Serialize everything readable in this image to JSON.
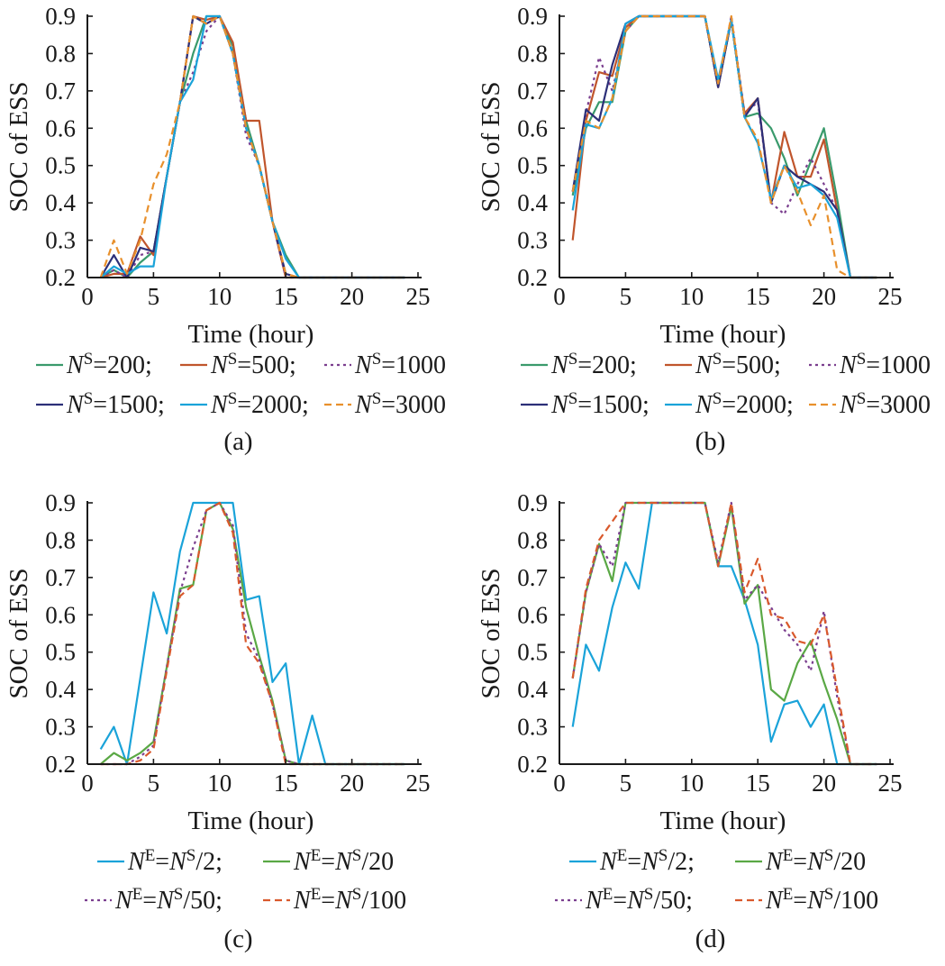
{
  "chart_data": [
    {
      "type": "line",
      "caption": "(a)",
      "xlabel": "Time (hour)",
      "ylabel": "SOC of ESS",
      "xlim": [
        0,
        25
      ],
      "ylim": [
        0.2,
        0.9
      ],
      "xticks": [
        "0",
        "5",
        "10",
        "15",
        "20",
        "25"
      ],
      "yticks": [
        "0.2",
        "0.3",
        "0.4",
        "0.5",
        "0.6",
        "0.7",
        "0.8",
        "0.9"
      ],
      "grid": false,
      "legend_position": "bottom",
      "x": [
        1,
        2,
        3,
        4,
        5,
        6,
        7,
        8,
        9,
        10,
        11,
        12,
        13,
        14,
        15,
        16,
        17,
        18,
        19,
        20,
        21,
        22,
        23,
        24
      ],
      "series": [
        {
          "name": "NS=200",
          "legend_base": "N",
          "legend_sup": "S",
          "legend_rest": "=200",
          "color": "#3a9a6c",
          "dash": "",
          "values": [
            0.2,
            0.22,
            0.2,
            0.24,
            0.27,
            0.47,
            0.67,
            0.8,
            0.9,
            0.9,
            0.82,
            0.62,
            0.5,
            0.35,
            0.26,
            0.2,
            0.2,
            0.2,
            0.2,
            0.2,
            0.2,
            0.2,
            0.2,
            0.2
          ]
        },
        {
          "name": "NS=500",
          "legend_base": "N",
          "legend_sup": "S",
          "legend_rest": "=500",
          "color": "#c0552c",
          "dash": "",
          "values": [
            0.2,
            0.21,
            0.21,
            0.31,
            0.26,
            0.47,
            0.67,
            0.9,
            0.89,
            0.9,
            0.83,
            0.62,
            0.62,
            0.35,
            0.2,
            0.2,
            0.2,
            0.2,
            0.2,
            0.2,
            0.2,
            0.2,
            0.2,
            0.2
          ]
        },
        {
          "name": "NS=1000",
          "legend_base": "N",
          "legend_sup": "S",
          "legend_rest": "=1000",
          "color": "#7b3f8f",
          "dash": "3,4",
          "values": [
            0.2,
            0.22,
            0.2,
            0.26,
            0.27,
            0.47,
            0.67,
            0.75,
            0.86,
            0.9,
            0.8,
            0.58,
            0.5,
            0.35,
            0.2,
            0.2,
            0.2,
            0.2,
            0.2,
            0.2,
            0.2,
            0.2,
            0.2,
            0.2
          ]
        },
        {
          "name": "NS=1500",
          "legend_base": "N",
          "legend_sup": "S",
          "legend_rest": "=1500",
          "color": "#2c2f78",
          "dash": "",
          "values": [
            0.2,
            0.26,
            0.2,
            0.28,
            0.27,
            0.47,
            0.67,
            0.9,
            0.88,
            0.9,
            0.8,
            0.6,
            0.5,
            0.35,
            0.21,
            0.2,
            0.2,
            0.2,
            0.2,
            0.2,
            0.2,
            0.2,
            0.2,
            0.2
          ]
        },
        {
          "name": "NS=2000",
          "legend_base": "N",
          "legend_sup": "S",
          "legend_rest": "=2000",
          "color": "#1aa3d9",
          "dash": "",
          "values": [
            0.2,
            0.23,
            0.21,
            0.23,
            0.23,
            0.47,
            0.67,
            0.73,
            0.9,
            0.9,
            0.8,
            0.6,
            0.5,
            0.35,
            0.25,
            0.2,
            0.2,
            0.2,
            0.2,
            0.2,
            0.2,
            0.2,
            0.2,
            0.2
          ]
        },
        {
          "name": "NS=3000",
          "legend_base": "N",
          "legend_sup": "S",
          "legend_rest": "=3000",
          "color": "#e8902c",
          "dash": "8,5",
          "values": [
            0.2,
            0.3,
            0.21,
            0.3,
            0.45,
            0.53,
            0.67,
            0.9,
            0.88,
            0.9,
            0.8,
            0.6,
            0.5,
            0.35,
            0.21,
            0.2,
            0.2,
            0.2,
            0.2,
            0.2,
            0.2,
            0.2,
            0.2,
            0.2
          ]
        }
      ]
    },
    {
      "type": "line",
      "caption": "(b)",
      "xlabel": "Time (hour)",
      "ylabel": "SOC of ESS",
      "xlim": [
        0,
        25
      ],
      "ylim": [
        0.2,
        0.9
      ],
      "xticks": [
        "0",
        "5",
        "10",
        "15",
        "20",
        "25"
      ],
      "yticks": [
        "0.2",
        "0.3",
        "0.4",
        "0.5",
        "0.6",
        "0.7",
        "0.8",
        "0.9"
      ],
      "grid": false,
      "legend_position": "bottom",
      "x": [
        1,
        2,
        3,
        4,
        5,
        6,
        7,
        8,
        9,
        10,
        11,
        12,
        13,
        14,
        15,
        16,
        17,
        18,
        19,
        20,
        21,
        22,
        23,
        24
      ],
      "series": [
        {
          "name": "NS=200",
          "legend_base": "N",
          "legend_sup": "S",
          "legend_rest": "=200",
          "color": "#3a9a6c",
          "dash": "",
          "values": [
            0.42,
            0.6,
            0.67,
            0.67,
            0.86,
            0.9,
            0.9,
            0.9,
            0.9,
            0.9,
            0.9,
            0.71,
            0.89,
            0.63,
            0.64,
            0.6,
            0.52,
            0.42,
            0.51,
            0.6,
            0.41,
            0.2,
            0.2,
            0.2
          ]
        },
        {
          "name": "NS=500",
          "legend_base": "N",
          "legend_sup": "S",
          "legend_rest": "=500",
          "color": "#c0552c",
          "dash": "",
          "values": [
            0.3,
            0.62,
            0.75,
            0.74,
            0.87,
            0.9,
            0.9,
            0.9,
            0.9,
            0.9,
            0.9,
            0.71,
            0.89,
            0.64,
            0.68,
            0.4,
            0.59,
            0.47,
            0.47,
            0.57,
            0.38,
            0.2,
            0.2,
            0.2
          ]
        },
        {
          "name": "NS=1000",
          "legend_base": "N",
          "legend_sup": "S",
          "legend_rest": "=1000",
          "color": "#7b3f8f",
          "dash": "3,4",
          "values": [
            0.43,
            0.64,
            0.79,
            0.7,
            0.86,
            0.9,
            0.9,
            0.9,
            0.9,
            0.9,
            0.9,
            0.71,
            0.9,
            0.64,
            0.67,
            0.4,
            0.37,
            0.45,
            0.52,
            0.45,
            0.38,
            0.2,
            0.2,
            0.2
          ]
        },
        {
          "name": "NS=1500",
          "legend_base": "N",
          "legend_sup": "S",
          "legend_rest": "=1500",
          "color": "#2c2f78",
          "dash": "",
          "values": [
            0.43,
            0.65,
            0.62,
            0.77,
            0.88,
            0.9,
            0.9,
            0.9,
            0.9,
            0.9,
            0.9,
            0.71,
            0.89,
            0.63,
            0.68,
            0.4,
            0.5,
            0.47,
            0.45,
            0.43,
            0.38,
            0.2,
            0.2,
            0.2
          ]
        },
        {
          "name": "NS=2000",
          "legend_base": "N",
          "legend_sup": "S",
          "legend_rest": "=2000",
          "color": "#1aa3d9",
          "dash": "",
          "values": [
            0.38,
            0.61,
            0.6,
            0.68,
            0.88,
            0.9,
            0.9,
            0.9,
            0.9,
            0.9,
            0.9,
            0.73,
            0.89,
            0.63,
            0.56,
            0.41,
            0.5,
            0.44,
            0.45,
            0.42,
            0.36,
            0.2,
            0.2,
            0.2
          ]
        },
        {
          "name": "NS=3000",
          "legend_base": "N",
          "legend_sup": "S",
          "legend_rest": "=3000",
          "color": "#e8902c",
          "dash": "8,5",
          "values": [
            0.43,
            0.62,
            0.6,
            0.68,
            0.86,
            0.9,
            0.9,
            0.9,
            0.9,
            0.9,
            0.9,
            0.72,
            0.9,
            0.63,
            0.57,
            0.4,
            0.5,
            0.43,
            0.34,
            0.42,
            0.22,
            0.2,
            0.2,
            0.2
          ]
        }
      ]
    },
    {
      "type": "line",
      "caption": "(c)",
      "xlabel": "Time (hour)",
      "ylabel": "SOC of ESS",
      "xlim": [
        0,
        25
      ],
      "ylim": [
        0.2,
        0.9
      ],
      "xticks": [
        "0",
        "5",
        "10",
        "15",
        "20",
        "25"
      ],
      "yticks": [
        "0.2",
        "0.3",
        "0.4",
        "0.5",
        "0.6",
        "0.7",
        "0.8",
        "0.9"
      ],
      "grid": false,
      "legend_position": "bottom",
      "x": [
        1,
        2,
        3,
        4,
        5,
        6,
        7,
        8,
        9,
        10,
        11,
        12,
        13,
        14,
        15,
        16,
        17,
        18,
        19,
        20,
        21,
        22,
        23,
        24
      ],
      "series": [
        {
          "name": "NE=NS/2",
          "legend_base": "N",
          "legend_sup": "E",
          "legend_rest": "=NS/2",
          "color": "#1aa3d9",
          "dash": "",
          "values": [
            0.24,
            0.3,
            0.2,
            0.43,
            0.66,
            0.55,
            0.77,
            0.9,
            0.9,
            0.9,
            0.9,
            0.64,
            0.65,
            0.42,
            0.47,
            0.2,
            0.33,
            0.2,
            0.2,
            0.2,
            0.2,
            0.2,
            0.2,
            0.2
          ]
        },
        {
          "name": "NE=NS/20",
          "legend_base": "N",
          "legend_sup": "E",
          "legend_rest": "=NS/20",
          "color": "#5aa845",
          "dash": "",
          "values": [
            0.2,
            0.23,
            0.21,
            0.23,
            0.26,
            0.46,
            0.67,
            0.68,
            0.88,
            0.9,
            0.83,
            0.62,
            0.49,
            0.37,
            0.21,
            0.2,
            0.2,
            0.2,
            0.2,
            0.2,
            0.2,
            0.2,
            0.2,
            0.2
          ]
        },
        {
          "name": "NE=NS/50",
          "legend_base": "N",
          "legend_sup": "E",
          "legend_rest": "=NS/50",
          "color": "#7b3f8f",
          "dash": "3,4",
          "values": [
            0.2,
            0.2,
            0.2,
            0.22,
            0.25,
            0.46,
            0.66,
            0.78,
            0.88,
            0.9,
            0.84,
            0.55,
            0.48,
            0.36,
            0.21,
            0.2,
            0.2,
            0.2,
            0.2,
            0.2,
            0.2,
            0.2,
            0.2,
            0.2
          ]
        },
        {
          "name": "NE=NS/100",
          "legend_base": "N",
          "legend_sup": "E",
          "legend_rest": "=NS/100",
          "color": "#d9592c",
          "dash": "8,5",
          "values": [
            0.2,
            0.2,
            0.2,
            0.21,
            0.24,
            0.45,
            0.65,
            0.68,
            0.88,
            0.9,
            0.82,
            0.52,
            0.47,
            0.36,
            0.2,
            0.2,
            0.2,
            0.2,
            0.2,
            0.2,
            0.2,
            0.2,
            0.2,
            0.2
          ]
        }
      ]
    },
    {
      "type": "line",
      "caption": "(d)",
      "xlabel": "Time (hour)",
      "ylabel": "SOC of ESS",
      "xlim": [
        0,
        25
      ],
      "ylim": [
        0.2,
        0.9
      ],
      "xticks": [
        "0",
        "5",
        "10",
        "15",
        "20",
        "25"
      ],
      "yticks": [
        "0.2",
        "0.3",
        "0.4",
        "0.5",
        "0.6",
        "0.7",
        "0.8",
        "0.9"
      ],
      "grid": false,
      "legend_position": "bottom",
      "x": [
        1,
        2,
        3,
        4,
        5,
        6,
        7,
        8,
        9,
        10,
        11,
        12,
        13,
        14,
        15,
        16,
        17,
        18,
        19,
        20,
        21,
        22,
        23,
        24
      ],
      "series": [
        {
          "name": "NE=NS/2",
          "legend_base": "N",
          "legend_sup": "E",
          "legend_rest": "=NS/2",
          "color": "#1aa3d9",
          "dash": "",
          "values": [
            0.3,
            0.52,
            0.45,
            0.62,
            0.74,
            0.67,
            0.9,
            0.9,
            0.9,
            0.9,
            0.9,
            0.73,
            0.73,
            0.64,
            0.52,
            0.26,
            0.36,
            0.37,
            0.3,
            0.36,
            0.2,
            0.2,
            0.2,
            0.2
          ]
        },
        {
          "name": "NE=NS/20",
          "legend_base": "N",
          "legend_sup": "E",
          "legend_rest": "=NS/20",
          "color": "#5aa845",
          "dash": "",
          "values": [
            0.43,
            0.66,
            0.79,
            0.69,
            0.9,
            0.9,
            0.9,
            0.9,
            0.9,
            0.9,
            0.9,
            0.73,
            0.89,
            0.63,
            0.68,
            0.4,
            0.37,
            0.47,
            0.53,
            0.42,
            0.32,
            0.2,
            0.2,
            0.2
          ]
        },
        {
          "name": "NE=NS/50",
          "legend_base": "N",
          "legend_sup": "E",
          "legend_rest": "=NS/50",
          "color": "#7b3f8f",
          "dash": "3,4",
          "values": [
            0.43,
            0.66,
            0.79,
            0.73,
            0.9,
            0.9,
            0.9,
            0.9,
            0.9,
            0.9,
            0.9,
            0.74,
            0.9,
            0.64,
            0.68,
            0.62,
            0.56,
            0.52,
            0.45,
            0.61,
            0.38,
            0.2,
            0.2,
            0.2
          ]
        },
        {
          "name": "NE=NS/100",
          "legend_base": "N",
          "legend_sup": "E",
          "legend_rest": "=NS/100",
          "color": "#d9592c",
          "dash": "8,5",
          "values": [
            0.43,
            0.67,
            0.8,
            0.85,
            0.9,
            0.9,
            0.9,
            0.9,
            0.9,
            0.9,
            0.9,
            0.73,
            0.9,
            0.66,
            0.75,
            0.6,
            0.59,
            0.53,
            0.52,
            0.6,
            0.4,
            0.2,
            0.2,
            0.2
          ]
        }
      ]
    }
  ]
}
